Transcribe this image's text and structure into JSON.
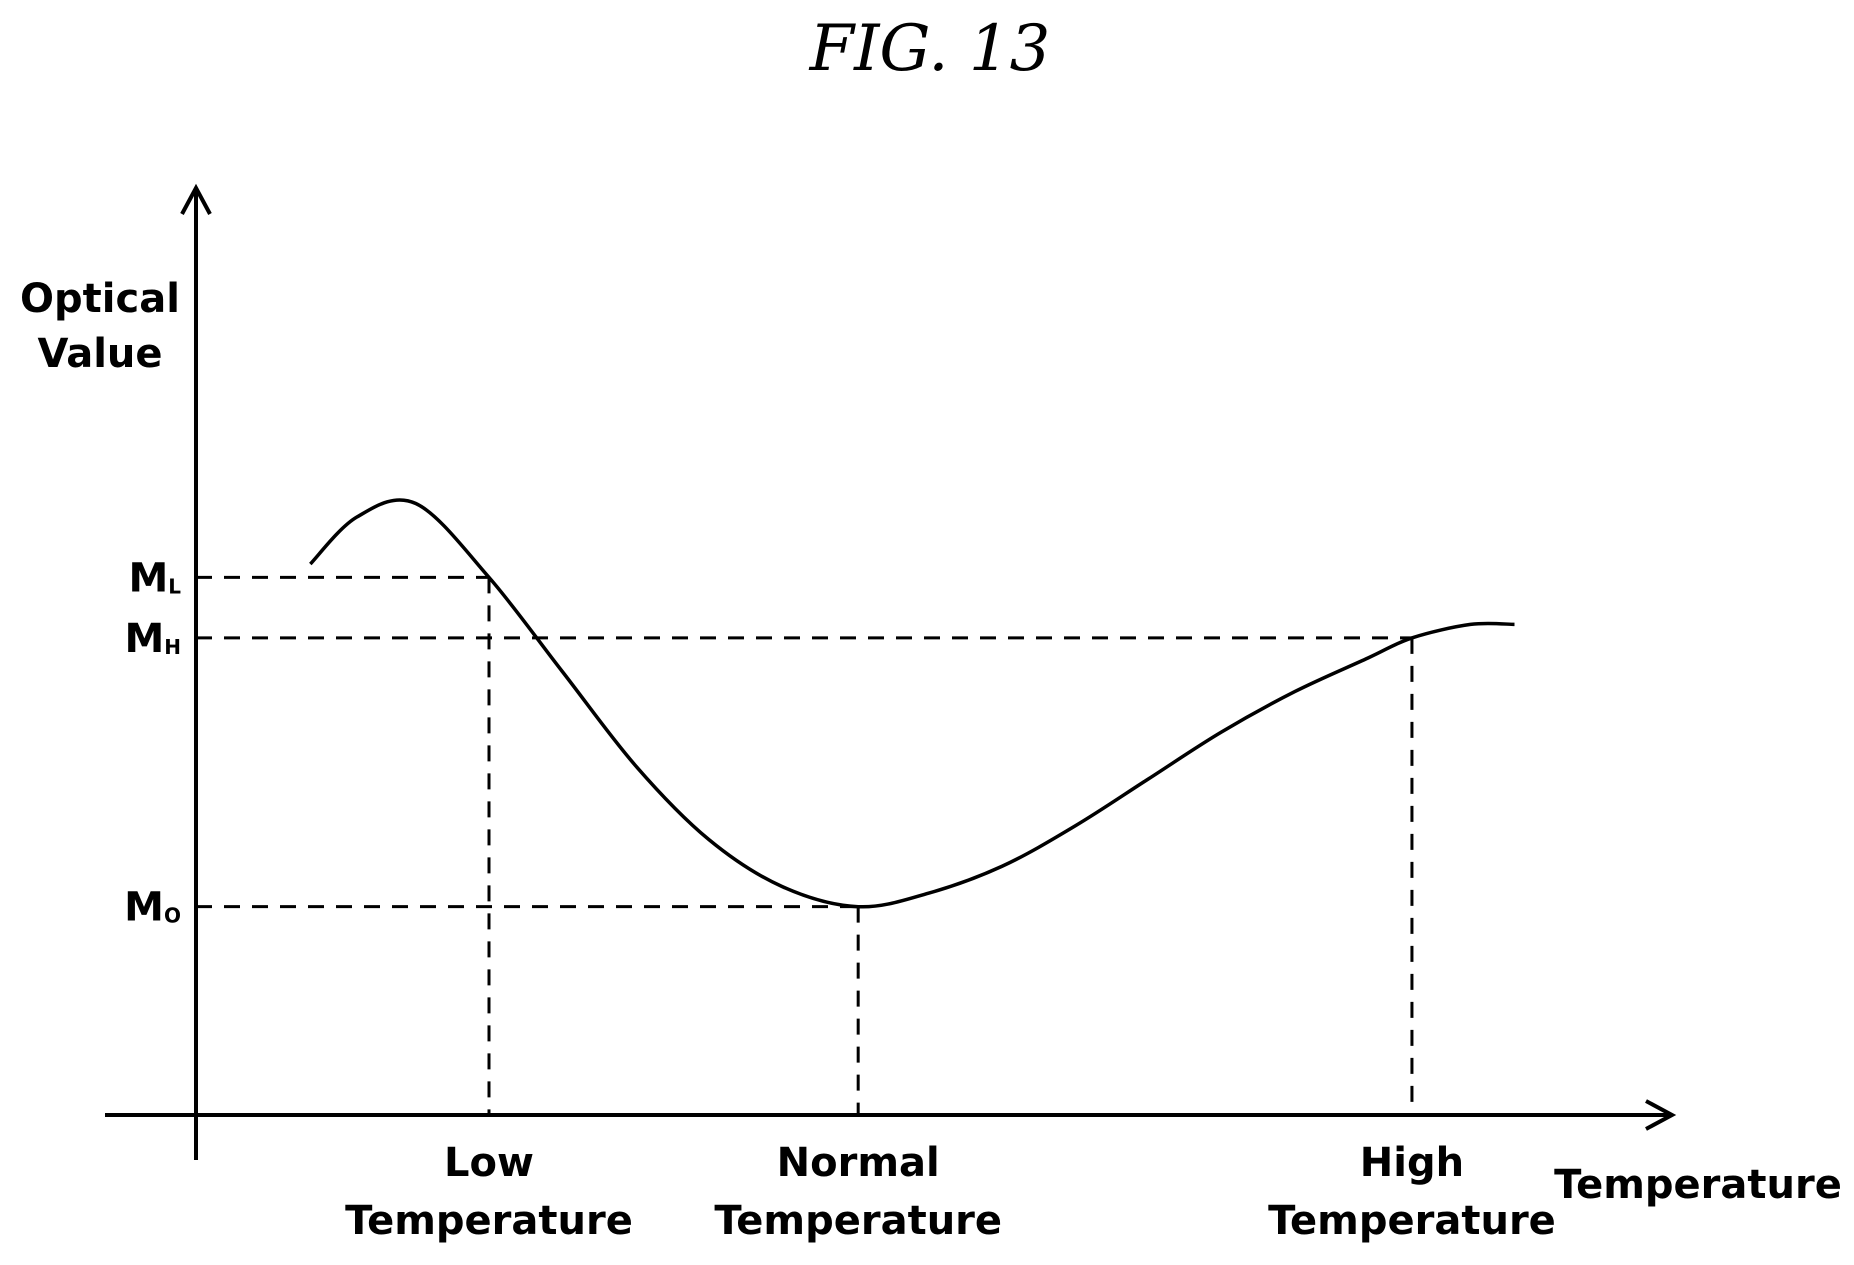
{
  "figure_label": "FIG. 13",
  "chart_data": {
    "type": "line",
    "title": "FIG. 13",
    "ylabel": [
      "Optical",
      "Value"
    ],
    "xlabel": "Temperature",
    "grid": false,
    "legend": false,
    "y_markers": [
      {
        "label": "M",
        "subscript": "L",
        "value": 0.8
      },
      {
        "label": "M",
        "subscript": "H",
        "value": 0.71
      },
      {
        "label": "M",
        "subscript": "O",
        "value": 0.31
      }
    ],
    "x_markers": [
      {
        "lines": [
          "Low",
          "Temperature"
        ],
        "value": 1.0
      },
      {
        "lines": [
          "Normal",
          "Temperature"
        ],
        "value": 2.26
      },
      {
        "lines": [
          "High",
          "Temperature"
        ],
        "value": 4.15
      }
    ],
    "xlim": [
      0,
      5.1
    ],
    "ylim": [
      0,
      1.6
    ],
    "series": [
      {
        "x": [
          0.39,
          0.55,
          0.75,
          1.0,
          1.25,
          1.5,
          1.75,
          2.0,
          2.26,
          2.5,
          2.75,
          3.0,
          3.25,
          3.5,
          3.75,
          4.0,
          4.15,
          4.35,
          4.5
        ],
        "y": [
          0.82,
          0.89,
          0.91,
          0.8,
          0.66,
          0.52,
          0.41,
          0.34,
          0.31,
          0.33,
          0.37,
          0.43,
          0.5,
          0.57,
          0.63,
          0.68,
          0.71,
          0.73,
          0.73
        ]
      }
    ]
  }
}
